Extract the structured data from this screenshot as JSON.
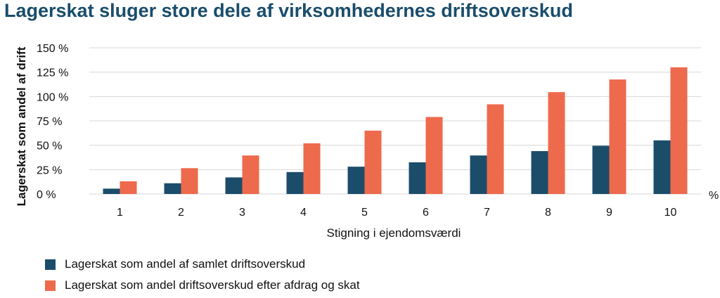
{
  "chart_data": {
    "type": "bar",
    "title": "Lagerskat sluger store dele af virksomhedernes driftsoverskud",
    "xlabel": "Stigning i ejendomsværdi",
    "x_unit": "%",
    "ylabel": "Lagerskat som andel af drift",
    "categories": [
      "1",
      "2",
      "3",
      "4",
      "5",
      "6",
      "7",
      "8",
      "9",
      "10"
    ],
    "y_ticks": [
      "0 %",
      "25 %",
      "50 %",
      "75 %",
      "100 %",
      "125 %",
      "150 %"
    ],
    "ylim": [
      0,
      150
    ],
    "grid": true,
    "legend_position": "bottom-left",
    "series": [
      {
        "name": "Lagerskat som andel af samlet driftsoverskud",
        "color": "#1b4d6b",
        "values": [
          5.5,
          11,
          17,
          22.5,
          28,
          32.5,
          39.5,
          44,
          49.5,
          55
        ]
      },
      {
        "name": "Lagerskat som andel driftsoverskud efter afdrag og skat",
        "color": "#ee6a4c",
        "values": [
          13,
          26.5,
          39.5,
          52,
          65,
          79,
          92,
          104.5,
          117.5,
          130
        ]
      }
    ]
  }
}
